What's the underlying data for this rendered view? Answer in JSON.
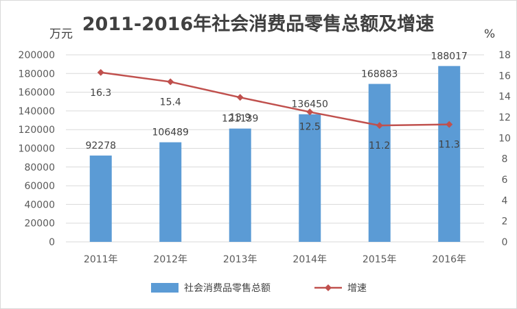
{
  "chart_data": {
    "type": "bar+line",
    "title": "2011-2016年社会消费品零售总额及增速",
    "left_unit": "万元",
    "right_unit": "%",
    "categories": [
      "2011年",
      "2012年",
      "2013年",
      "2014年",
      "2015年",
      "2016年"
    ],
    "series": [
      {
        "name": "社会消费品零售总额",
        "type": "bar",
        "axis": "left",
        "color": "#5b9bd5",
        "values": [
          92278,
          106489,
          121139,
          136450,
          168883,
          188017
        ],
        "labels": [
          "92278",
          "106489",
          "121139",
          "136450",
          "168883",
          "188017"
        ]
      },
      {
        "name": "增速",
        "type": "line",
        "axis": "right",
        "color": "#c0504d",
        "values": [
          16.3,
          15.4,
          13.9,
          12.5,
          11.2,
          11.3
        ],
        "labels": [
          "16.3",
          "15.4",
          "13.9",
          "12.5",
          "11.2",
          "11.3"
        ]
      }
    ],
    "y_left": {
      "min": 0,
      "max": 200000,
      "step": 20000
    },
    "y_right": {
      "min": 0,
      "max": 18,
      "step": 2
    },
    "grid": true,
    "legend_position": "bottom"
  }
}
